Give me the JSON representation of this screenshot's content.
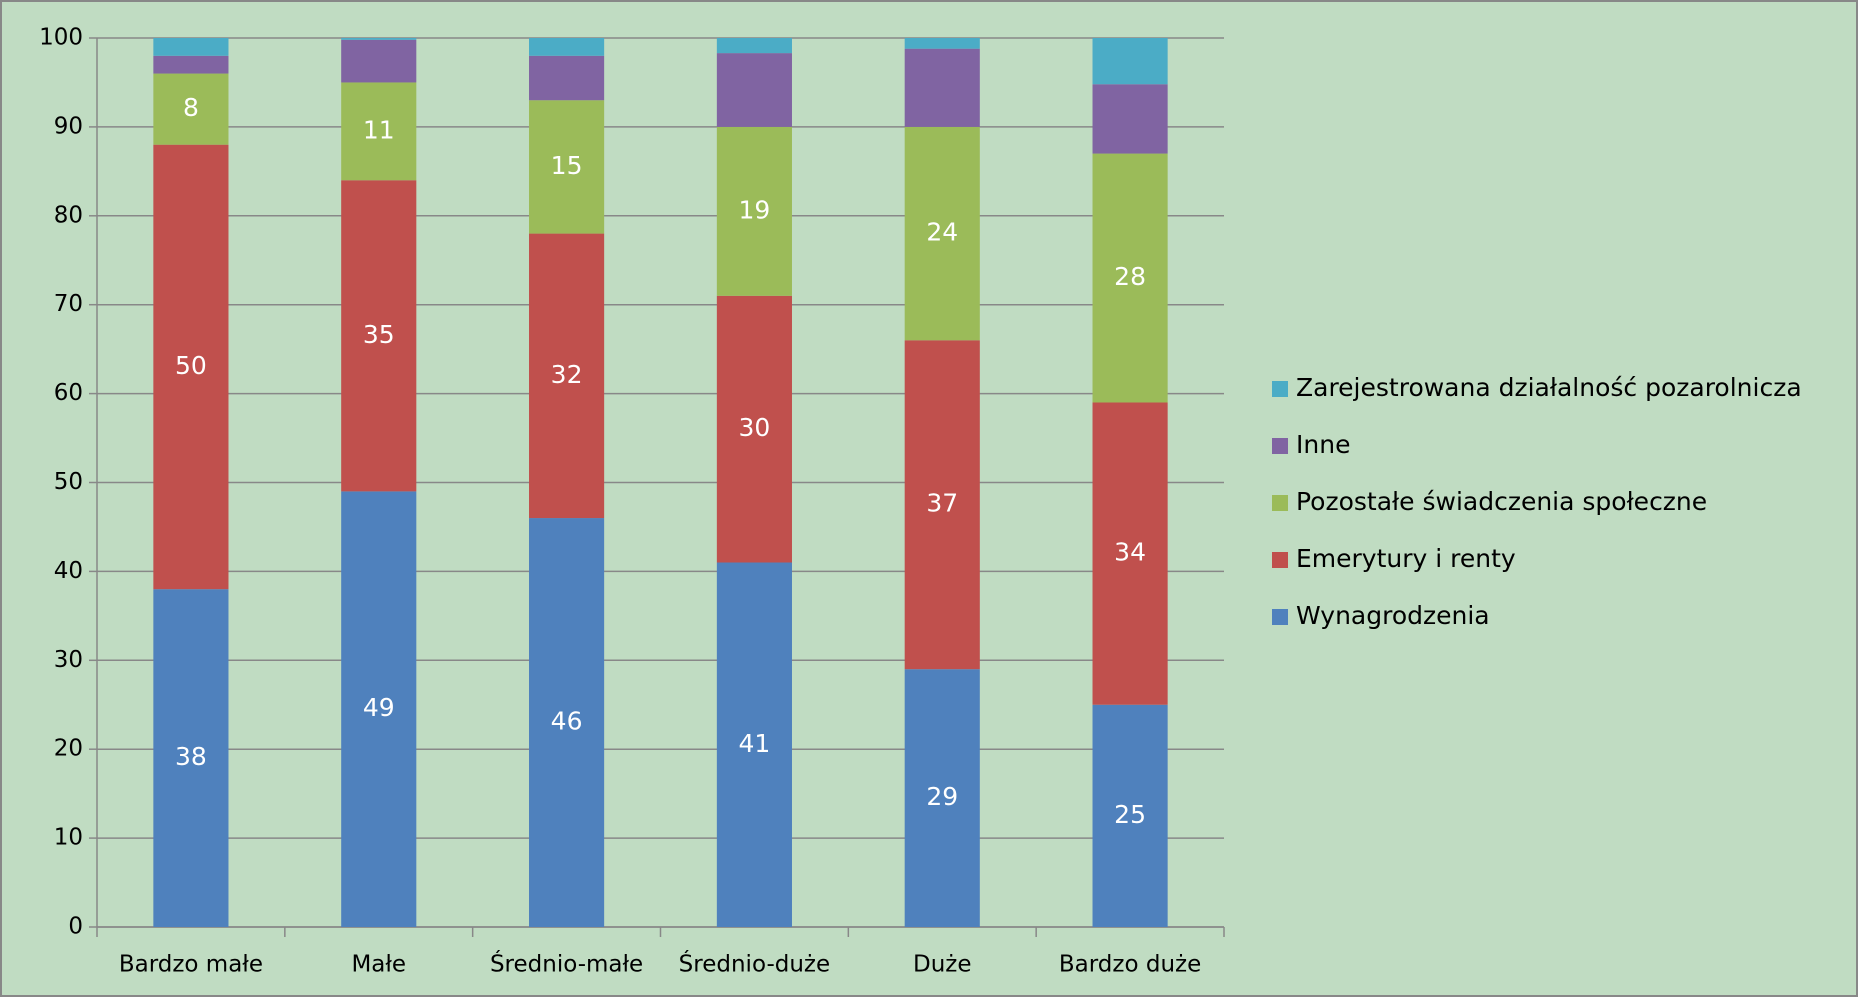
{
  "chart_data": {
    "type": "stacked_bar",
    "categories": [
      "Bardzo małe",
      "Małe",
      "Średnio-małe",
      "Średnio-duże",
      "Duże",
      "Bardzo duże"
    ],
    "series": [
      {
        "name": "Wynagrodzenia",
        "color": "#4f81bd",
        "values": [
          38,
          49,
          46,
          41,
          29,
          25
        ],
        "show_labels": true
      },
      {
        "name": "Emerytury i renty",
        "color": "#c0504d",
        "values": [
          50,
          35,
          32,
          30,
          37,
          34
        ],
        "show_labels": true
      },
      {
        "name": "Pozostałe świadczenia społeczne",
        "color": "#9bbb59",
        "values": [
          8,
          11,
          15,
          19,
          24,
          28
        ],
        "show_labels": true
      },
      {
        "name": "Inne",
        "color": "#8064a2",
        "values": [
          2,
          4.8,
          5,
          8.3,
          8.8,
          7.8
        ],
        "show_labels": false
      },
      {
        "name": "Zarejestrowana działalność pozarolnicza",
        "color": "#4bacc6",
        "values": [
          2,
          0.2,
          2,
          1.7,
          1.2,
          5.2
        ],
        "show_labels": false
      }
    ],
    "ylim": [
      0,
      100
    ],
    "yticks": [
      0,
      10,
      20,
      30,
      40,
      50,
      60,
      70,
      80,
      90,
      100
    ],
    "grid": true,
    "legend": "right"
  }
}
